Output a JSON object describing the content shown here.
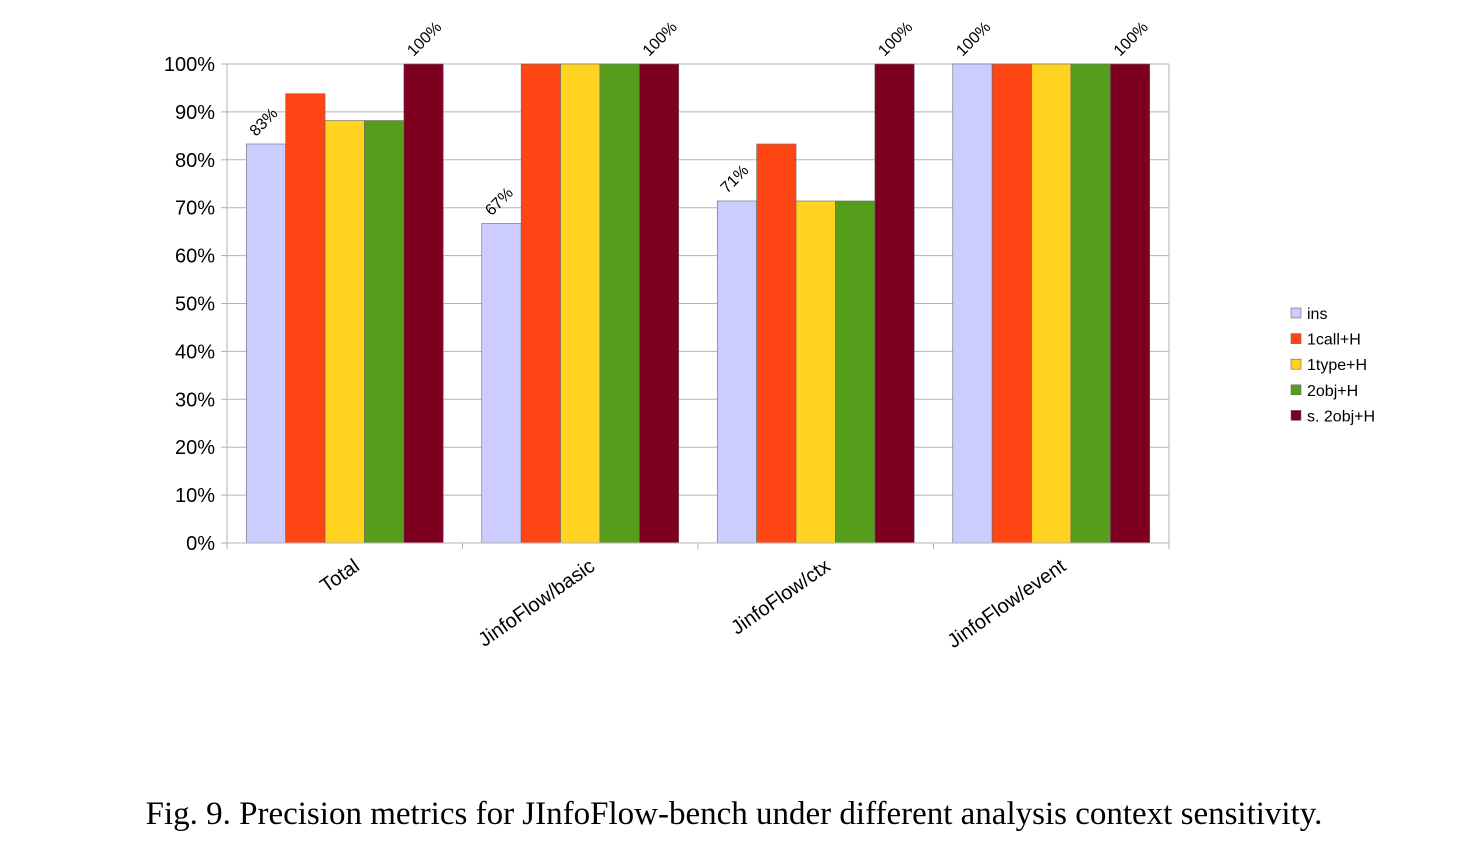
{
  "caption": "Fig. 9.  Precision metrics for JInfoFlow-bench under different analysis context sensitivity.",
  "chart_data": {
    "type": "bar",
    "title": "",
    "xlabel": "",
    "ylabel": "",
    "ylim": [
      0,
      100
    ],
    "y_ticks": [
      "0%",
      "10%",
      "20%",
      "30%",
      "40%",
      "50%",
      "60%",
      "70%",
      "80%",
      "90%",
      "100%"
    ],
    "grid": "horizontal",
    "legend_position": "right",
    "categories": [
      "Total",
      "JinfoFlow/basic",
      "JinfoFlow/ctx",
      "JinfoFlow/event"
    ],
    "series": [
      {
        "name": "ins",
        "color": "#ccccff",
        "values": [
          83.3,
          66.7,
          71.4,
          100
        ]
      },
      {
        "name": "1call+H",
        "color": "#ff4513",
        "values": [
          93.8,
          100,
          83.3,
          100
        ]
      },
      {
        "name": "1type+H",
        "color": "#ffd320",
        "values": [
          88.2,
          100,
          71.4,
          100
        ]
      },
      {
        "name": "2obj+H",
        "color": "#579d1c",
        "values": [
          88.2,
          100,
          71.4,
          100
        ]
      },
      {
        "name": "s. 2obj+H",
        "color": "#7e0021",
        "values": [
          100,
          100,
          100,
          100
        ]
      }
    ],
    "data_labels": [
      {
        "category": 0,
        "series": 0,
        "text": "83%"
      },
      {
        "category": 0,
        "series": 4,
        "text": "100%"
      },
      {
        "category": 1,
        "series": 0,
        "text": "67%"
      },
      {
        "category": 1,
        "series": 4,
        "text": "100%"
      },
      {
        "category": 2,
        "series": 0,
        "text": "71%"
      },
      {
        "category": 2,
        "series": 4,
        "text": "100%"
      },
      {
        "category": 3,
        "series": 0,
        "text": "100%"
      },
      {
        "category": 3,
        "series": 4,
        "text": "100%"
      }
    ]
  }
}
